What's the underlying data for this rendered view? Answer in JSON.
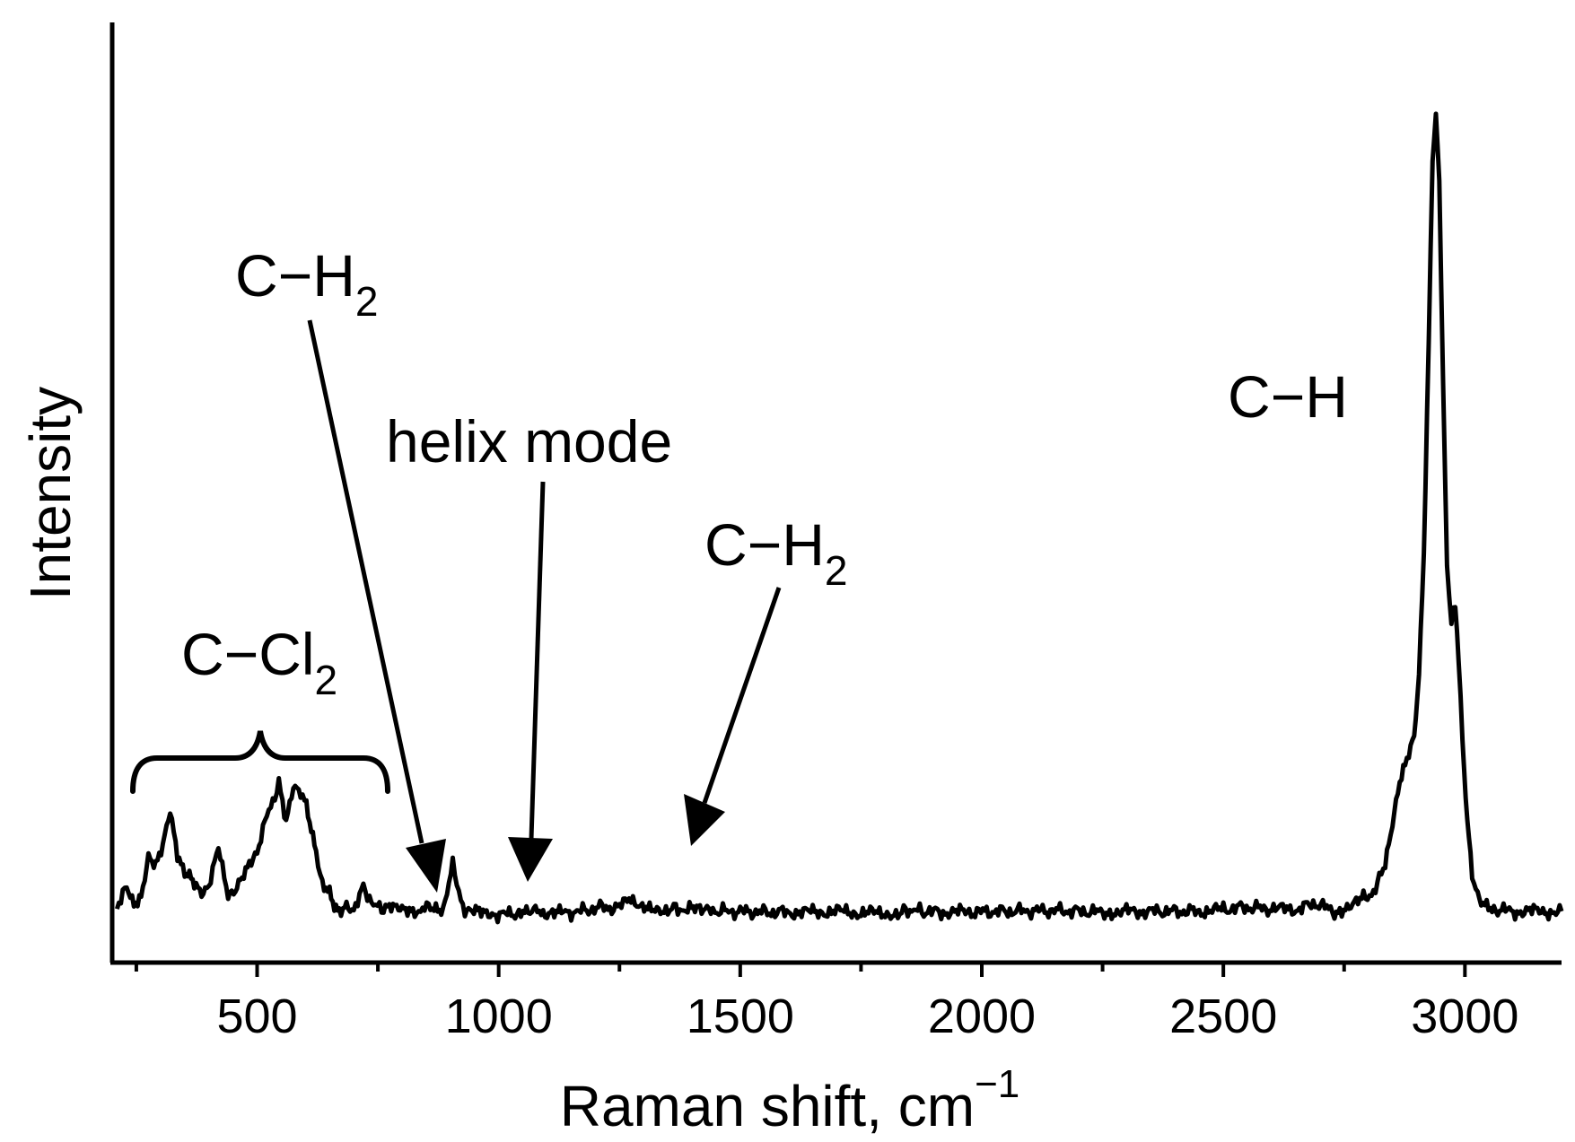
{
  "chart_data": {
    "type": "line",
    "xlabel": "Raman shift, cm",
    "xlabel_sup": "−1",
    "ylabel": "Intensity",
    "xlim": [
      200,
      3200
    ],
    "ylim": [
      0,
      100
    ],
    "x_ticks": [
      500,
      1000,
      1500,
      2000,
      2500,
      3000
    ],
    "x_tick_labels": [
      "500",
      "1000",
      "1500",
      "2000",
      "2500",
      "3000"
    ],
    "x_minor_ticks": [
      250,
      750,
      1250,
      1750,
      2250,
      2750
    ],
    "y_ticks_shown": false,
    "grid": false,
    "series": [
      {
        "x": [
          210,
          230,
          245,
          260,
          275,
          290,
          305,
          320,
          335,
          350,
          360,
          370,
          385,
          400,
          420,
          440,
          455,
          465,
          480,
          500,
          520,
          545,
          560,
          575,
          590,
          602,
          612,
          622,
          635,
          650,
          660,
          670,
          685,
          700,
          720,
          745,
          770,
          800,
          830,
          855,
          870,
          885,
          905,
          930,
          960,
          990,
          1010,
          1030,
          1050,
          1065,
          1080,
          1100,
          1130,
          1170,
          1210,
          1250,
          1270,
          1290,
          1320,
          1350,
          1375,
          1395,
          1410,
          1420,
          1435,
          1460,
          1500,
          1540,
          1600,
          1650,
          1700,
          1750,
          1800,
          1830,
          1855,
          1880,
          1920,
          1970,
          2050,
          2150,
          2250,
          2280,
          2350,
          2450,
          2500,
          2540,
          2600,
          2650,
          2690,
          2730,
          2760,
          2790,
          2815,
          2835,
          2850,
          2865,
          2880,
          2895,
          2905,
          2915,
          2925,
          2933,
          2940,
          2947,
          2955,
          2963,
          2972,
          2980,
          2987,
          2995,
          3005,
          3015,
          3030,
          3060,
          3100,
          3150,
          3200
        ],
        "y": [
          1.5,
          3.8,
          1.8,
          3.0,
          8.0,
          6.8,
          9.0,
          13.0,
          7.5,
          5.5,
          5.0,
          4.6,
          3.0,
          3.6,
          9.3,
          2.5,
          3.2,
          4.5,
          6.0,
          8.5,
          12.5,
          16.5,
          11.5,
          16.0,
          15.5,
          14.5,
          11.0,
          8.0,
          4.5,
          3.3,
          2.0,
          1.0,
          2.0,
          1.3,
          3.8,
          1.5,
          1.5,
          1.0,
          1.0,
          1.5,
          1.5,
          1.4,
          6.5,
          0.7,
          0.9,
          0.7,
          0.6,
          0.8,
          0.7,
          0.6,
          1.2,
          0.7,
          0.8,
          1.0,
          1.5,
          1.4,
          3.0,
          1.2,
          1.3,
          1.3,
          1.3,
          1.2,
          1.1,
          1.1,
          1.0,
          1.0,
          1.0,
          0.9,
          0.9,
          0.9,
          1.0,
          0.8,
          0.8,
          0.8,
          1.2,
          1.0,
          0.9,
          0.9,
          1.0,
          1.1,
          0.9,
          1.0,
          1.0,
          1.0,
          1.2,
          1.5,
          1.3,
          1.2,
          2.0,
          1.0,
          1.5,
          2.5,
          3.5,
          7.0,
          12.0,
          17.0,
          19.5,
          22.0,
          30.0,
          45.0,
          70.0,
          93.0,
          98.0,
          90.0,
          65.0,
          43.0,
          36.0,
          38.5,
          32.0,
          22.0,
          12.0,
          5.0,
          2.0,
          1.3,
          1.0,
          1.0,
          1.0
        ],
        "xy_note": ""
      }
    ],
    "annotations": [
      {
        "text": "C−H",
        "sub": "2",
        "points_to_x": 870
      },
      {
        "text": "helix mode",
        "sub": "",
        "points_to_x": 1065
      },
      {
        "text": "C−H",
        "sub": "2",
        "points_to_x": 1410
      },
      {
        "text": "C−H",
        "sub": "",
        "points_to_x": null
      },
      {
        "text": "C−Cl",
        "sub": "2",
        "points_to_x": null
      }
    ]
  }
}
